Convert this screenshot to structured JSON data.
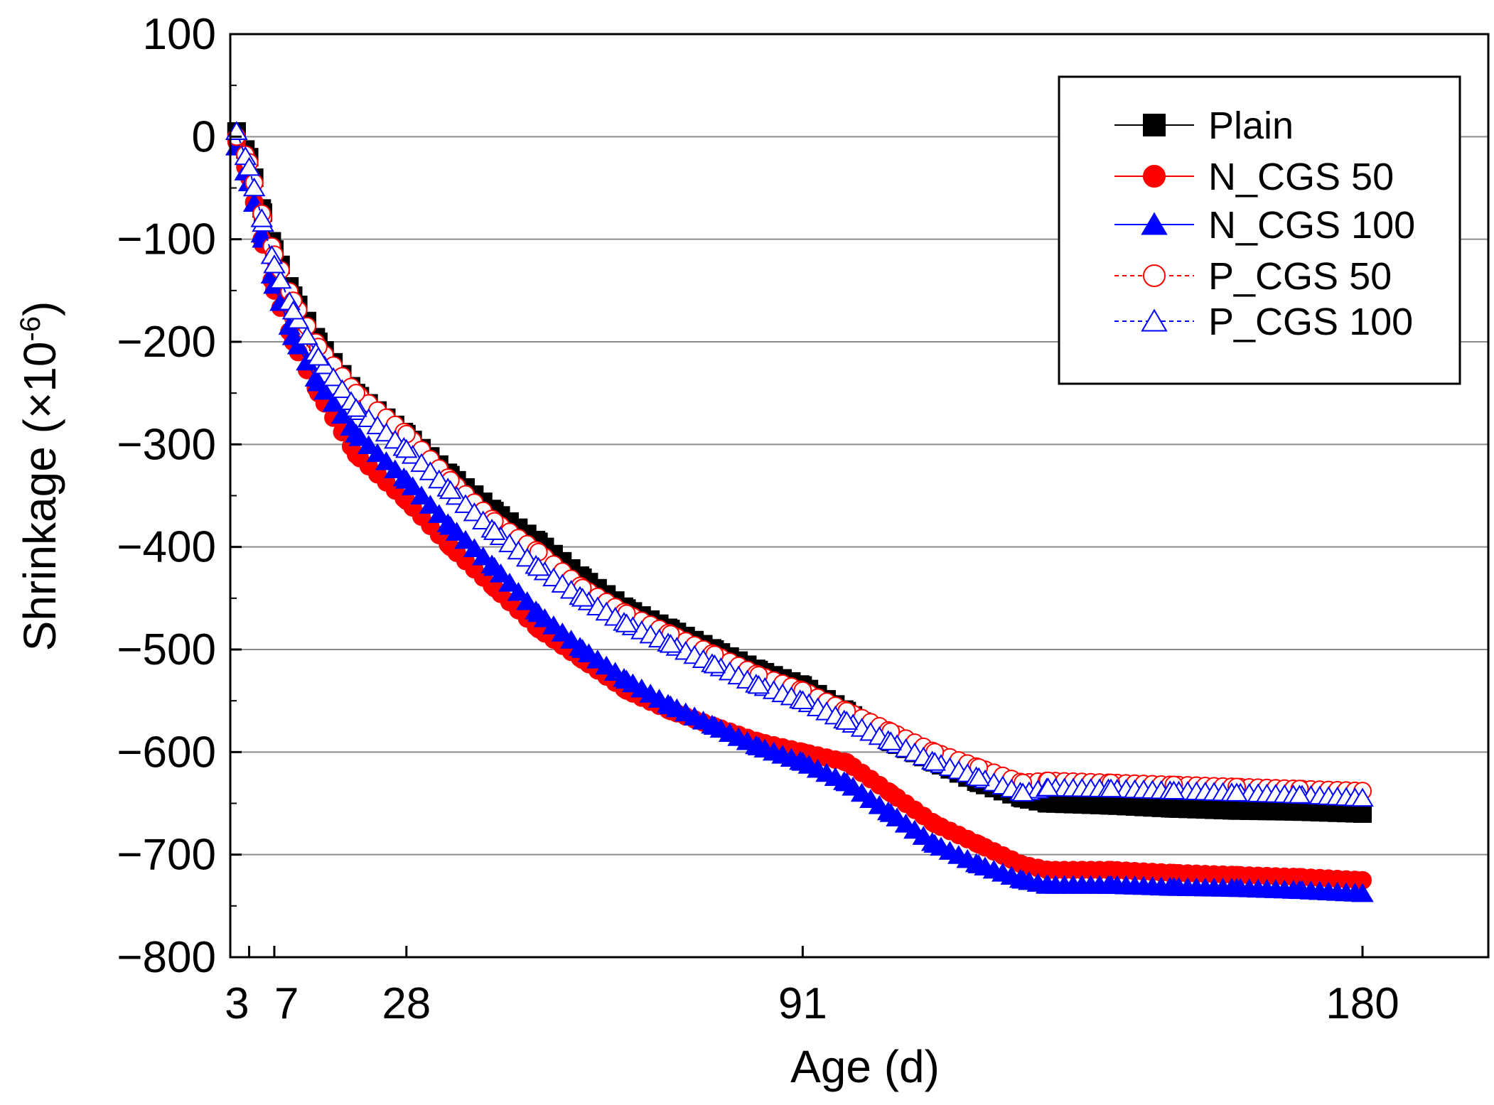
{
  "chart_data": {
    "type": "line",
    "title": "",
    "xlabel": "Age (d)",
    "ylabel": "Shrinkage (×10",
    "ylabel_exponent": "-6",
    "ylabel_close": ")",
    "xlim": [
      0,
      200
    ],
    "ylim": [
      -800,
      100
    ],
    "grid": "horizontal",
    "legend_position": "top-right",
    "x_ticks": [
      {
        "value": 3,
        "label": "3"
      },
      {
        "value": 7,
        "label": "7"
      },
      {
        "value": 28,
        "label": "28"
      },
      {
        "value": 91,
        "label": "91"
      },
      {
        "value": 180,
        "label": "180"
      }
    ],
    "y_ticks": [
      100,
      0,
      -100,
      -200,
      -300,
      -400,
      -500,
      -600,
      -700,
      -800
    ],
    "series": [
      {
        "name": "Plain",
        "color": "#000000",
        "marker": "square",
        "filled": true,
        "dashed": false,
        "x": [
          1,
          3,
          5,
          7,
          10,
          14,
          20,
          28,
          35,
          42,
          49,
          56,
          63,
          70,
          77,
          84,
          91,
          98,
          105,
          112,
          119,
          126,
          130,
          140,
          150,
          160,
          170,
          180
        ],
        "y": [
          5,
          -20,
          -70,
          -110,
          -155,
          -200,
          -250,
          -290,
          -330,
          -365,
          -395,
          -430,
          -460,
          -480,
          -500,
          -520,
          -535,
          -560,
          -590,
          -610,
          -630,
          -645,
          -650,
          -652,
          -655,
          -657,
          -658,
          -660
        ]
      },
      {
        "name": "N_CGS 50",
        "color": "#ff0000",
        "marker": "circle",
        "filled": true,
        "dashed": false,
        "x": [
          1,
          3,
          5,
          7,
          10,
          14,
          20,
          28,
          35,
          42,
          49,
          56,
          63,
          70,
          77,
          84,
          91,
          98,
          105,
          112,
          119,
          126,
          130,
          140,
          150,
          160,
          170,
          180
        ],
        "y": [
          -5,
          -40,
          -100,
          -150,
          -200,
          -250,
          -310,
          -355,
          -400,
          -440,
          -480,
          -510,
          -540,
          -560,
          -575,
          -590,
          -600,
          -610,
          -640,
          -670,
          -690,
          -710,
          -715,
          -715,
          -718,
          -720,
          -722,
          -725
        ]
      },
      {
        "name": "N_CGS 100",
        "color": "#0000ff",
        "marker": "triangle",
        "filled": true,
        "dashed": false,
        "x": [
          1,
          3,
          5,
          7,
          10,
          14,
          20,
          28,
          35,
          42,
          49,
          56,
          63,
          70,
          77,
          84,
          91,
          98,
          105,
          112,
          119,
          126,
          130,
          140,
          150,
          160,
          170,
          180
        ],
        "y": [
          -10,
          -45,
          -95,
          -145,
          -195,
          -240,
          -290,
          -335,
          -380,
          -420,
          -465,
          -500,
          -530,
          -555,
          -575,
          -595,
          -610,
          -630,
          -660,
          -690,
          -710,
          -725,
          -730,
          -730,
          -732,
          -733,
          -735,
          -738
        ]
      },
      {
        "name": "P_CGS 50",
        "color": "#ff0000",
        "marker": "circle",
        "filled": false,
        "dashed": true,
        "x": [
          1,
          3,
          5,
          7,
          10,
          14,
          20,
          28,
          35,
          42,
          49,
          56,
          63,
          70,
          77,
          84,
          91,
          98,
          105,
          112,
          119,
          126,
          130,
          140,
          150,
          160,
          170,
          180
        ],
        "y": [
          0,
          -25,
          -75,
          -115,
          -160,
          -205,
          -250,
          -290,
          -335,
          -375,
          -405,
          -440,
          -465,
          -485,
          -505,
          -525,
          -540,
          -560,
          -580,
          -600,
          -615,
          -630,
          -628,
          -630,
          -632,
          -634,
          -636,
          -638
        ]
      },
      {
        "name": "P_CGS 100",
        "color": "#0000ff",
        "marker": "triangle",
        "filled": false,
        "dashed": true,
        "x": [
          1,
          3,
          5,
          7,
          10,
          14,
          20,
          28,
          35,
          42,
          49,
          56,
          63,
          70,
          77,
          84,
          91,
          98,
          105,
          112,
          119,
          126,
          130,
          140,
          150,
          160,
          170,
          180
        ],
        "y": [
          5,
          -30,
          -80,
          -125,
          -170,
          -215,
          -265,
          -305,
          -345,
          -385,
          -420,
          -450,
          -475,
          -495,
          -515,
          -535,
          -550,
          -570,
          -590,
          -610,
          -625,
          -640,
          -635,
          -636,
          -638,
          -640,
          -642,
          -645
        ]
      }
    ]
  }
}
